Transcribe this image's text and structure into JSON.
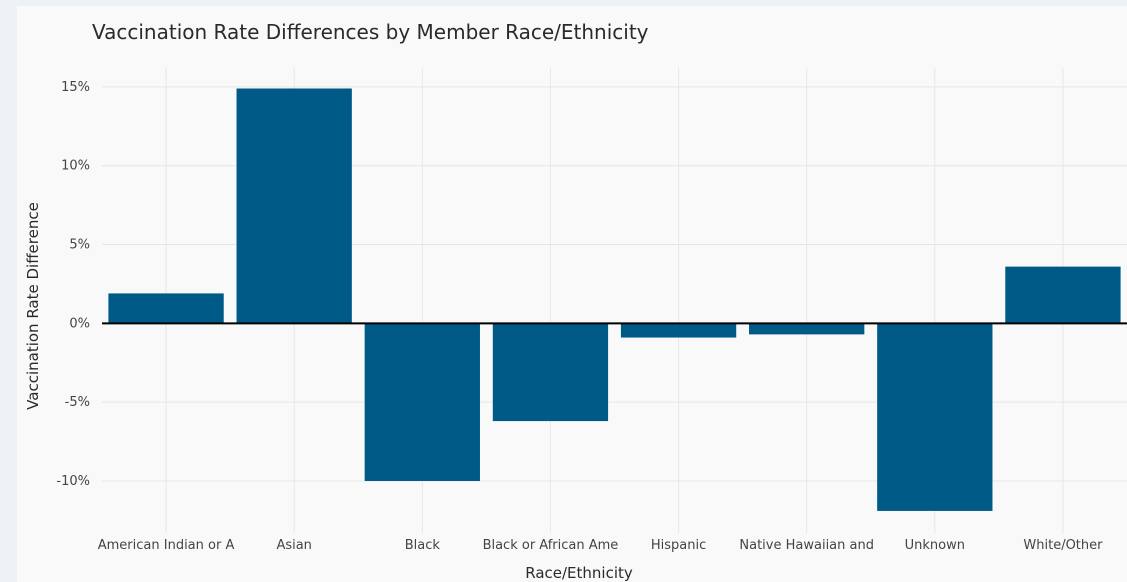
{
  "chart_data": {
    "type": "bar",
    "title": "Vaccination Rate Differences by Member Race/Ethnicity",
    "xlabel": "Race/Ethnicity",
    "ylabel": "Vaccination Rate Difference",
    "categories": [
      "American Indian or A",
      "Asian",
      "Black",
      "Black or African Ame",
      "Hispanic",
      "Native Hawaiian and",
      "Unknown",
      "White/Other"
    ],
    "values": [
      1.9,
      14.9,
      -10.0,
      -6.2,
      -0.9,
      -0.7,
      -11.9,
      3.6
    ],
    "ylim": [
      -13.3,
      16.2
    ],
    "yticks": [
      15,
      10,
      5,
      0,
      -5,
      -10
    ],
    "ytick_labels": [
      "15%",
      "10%",
      "5%",
      "0%",
      "-5%",
      "-10%"
    ],
    "bar_color": "#005a87",
    "grid": true,
    "zero_line": true
  }
}
